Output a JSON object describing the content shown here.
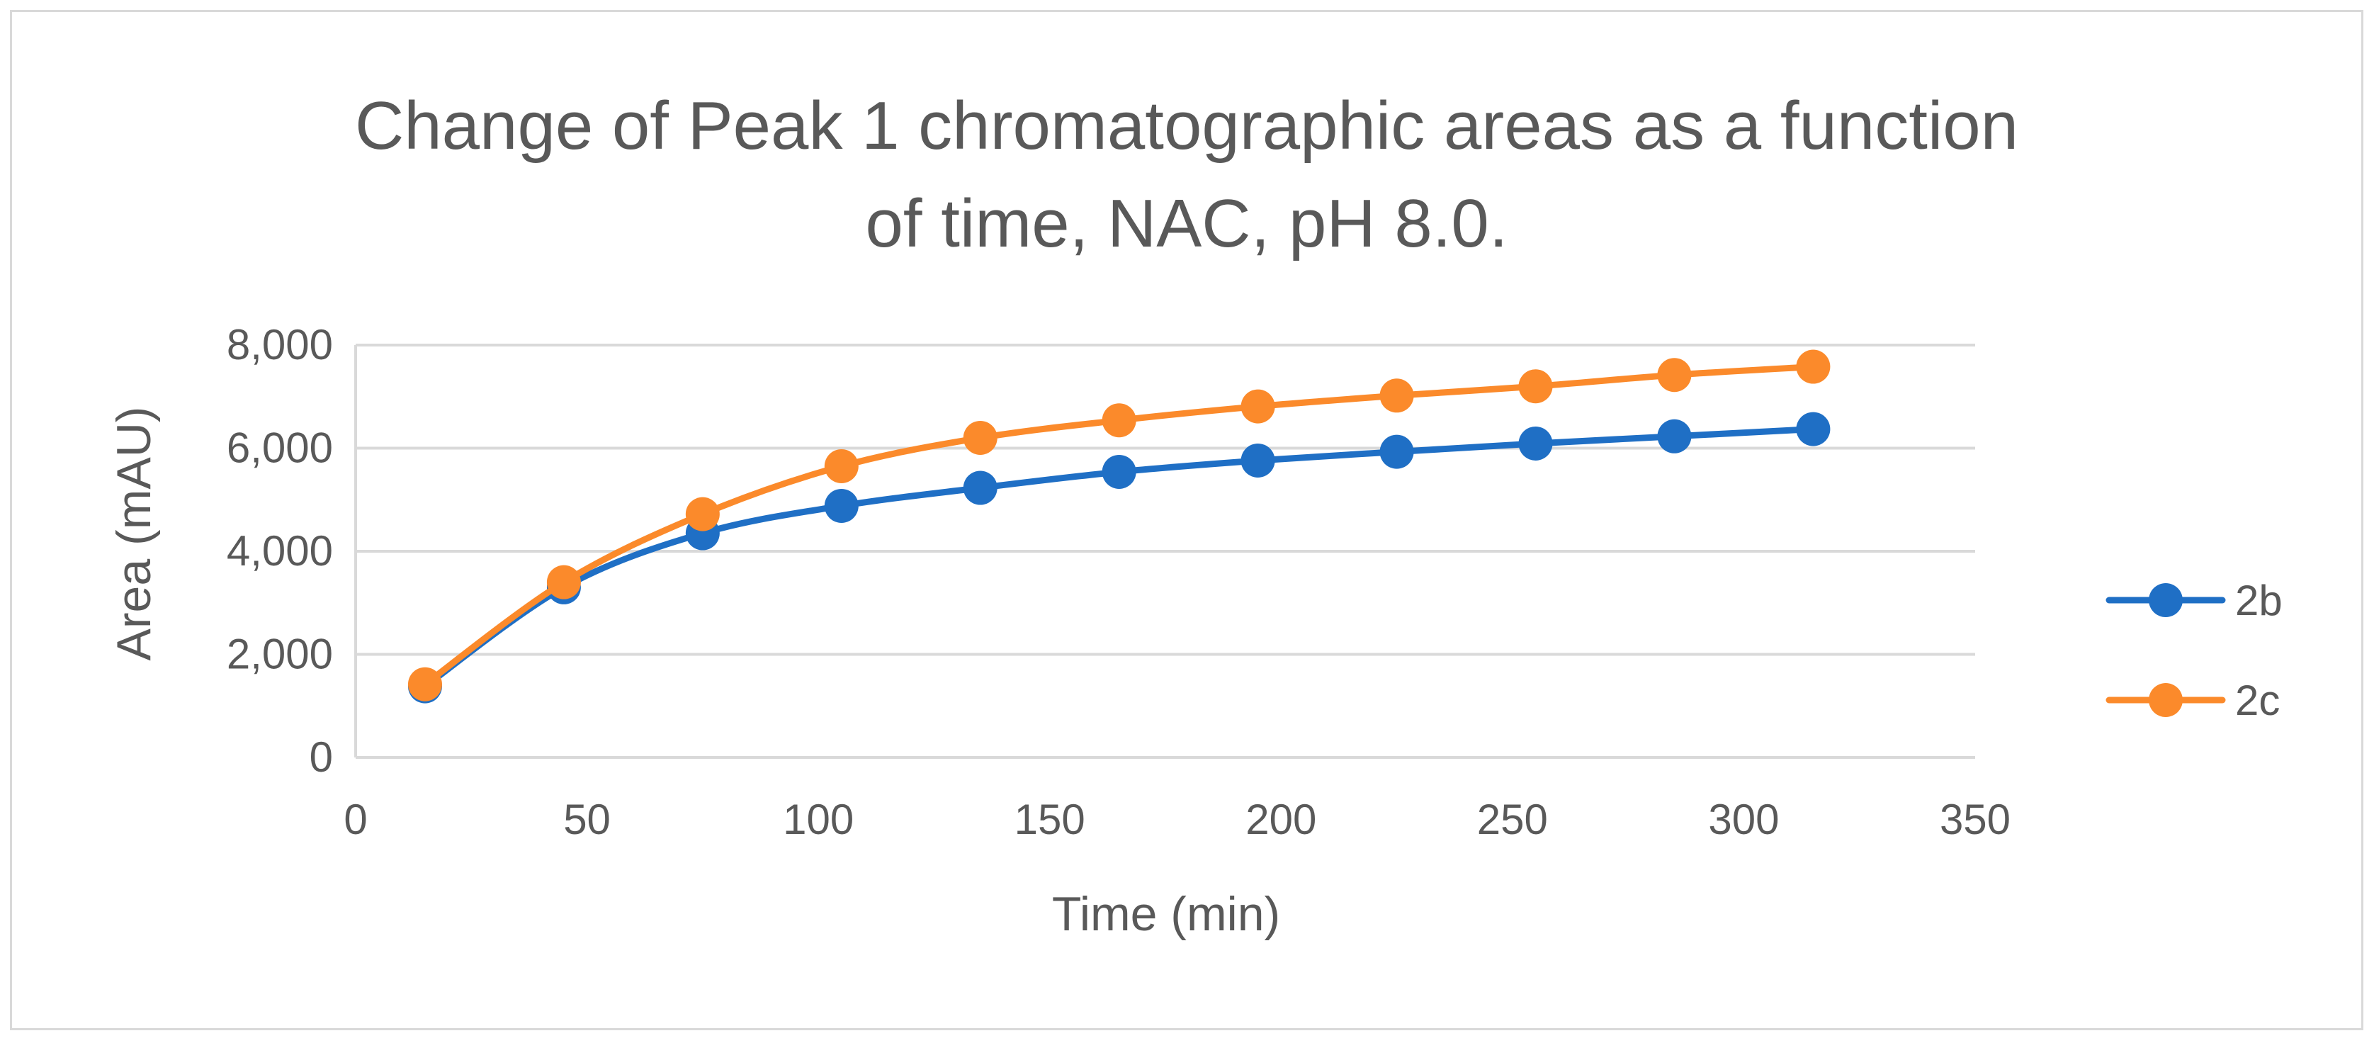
{
  "chart_data": {
    "type": "line",
    "title_lines": [
      "Change of Peak 1 chromatographic areas as a function",
      "of time, NAC, pH 8.0."
    ],
    "xlabel": "Time (min)",
    "ylabel": "Area (mAU)",
    "xlim": [
      0,
      350
    ],
    "ylim": [
      0,
      8000
    ],
    "x_ticks": [
      0,
      50,
      100,
      150,
      200,
      250,
      300,
      350
    ],
    "x_tick_labels": [
      "0",
      "50",
      "100",
      "150",
      "200",
      "250",
      "300",
      "350"
    ],
    "y_ticks": [
      0,
      2000,
      4000,
      6000,
      8000
    ],
    "y_tick_labels": [
      "0",
      "2,000",
      "4,000",
      "6,000",
      "8,000"
    ],
    "grid": "horizontal",
    "legend_position": "right",
    "x": [
      15,
      45,
      75,
      105,
      135,
      165,
      195,
      225,
      255,
      285,
      315
    ],
    "series": [
      {
        "name": "2b",
        "color": "#1f6fc5",
        "values": [
          1380,
          3300,
          4350,
          4880,
          5230,
          5540,
          5760,
          5930,
          6090,
          6230,
          6370
        ]
      },
      {
        "name": "2c",
        "color": "#fb8a2b",
        "values": [
          1420,
          3400,
          4720,
          5650,
          6200,
          6540,
          6810,
          7020,
          7200,
          7420,
          7580
        ]
      }
    ]
  }
}
